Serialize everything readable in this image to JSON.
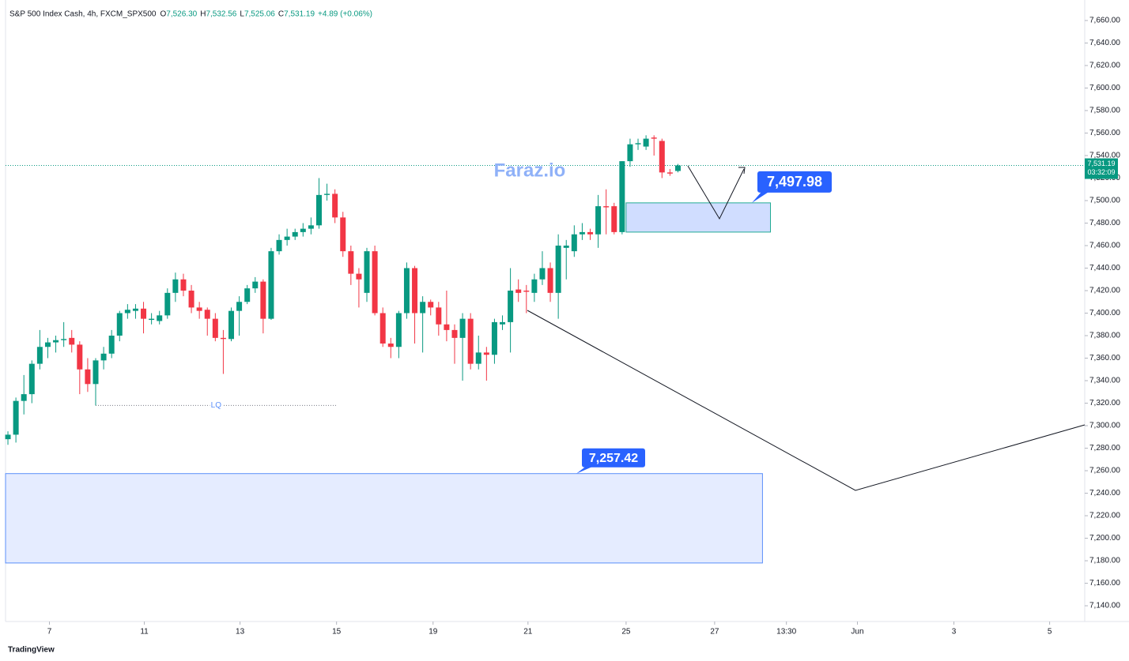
{
  "chart_data": {
    "type": "candlestick",
    "header": {
      "symbol": "S&P 500 Index Cash, 4h, FXCM_SPX500",
      "ohlc": [
        {
          "key": "O",
          "text": "7,526.30"
        },
        {
          "key": "H",
          "text": "7,532.56"
        },
        {
          "key": "L",
          "text": "7,525.06"
        },
        {
          "key": "C",
          "text": "7,531.19"
        }
      ],
      "change": "+4.89 (+0.06%)"
    },
    "watermark": "Faraz.io",
    "colors": {
      "up": "#089981",
      "down": "#f23645",
      "zone": "#2962ff"
    },
    "open": [
      7288,
      7292,
      7322,
      7328,
      7355,
      7370,
      7374,
      7376,
      7378,
      7372,
      7350,
      7337,
      7358,
      7364,
      7380,
      7400,
      7402,
      7404,
      7394,
      7393,
      7398,
      7418,
      7430,
      7420,
      7405,
      7403,
      7395,
      7378,
      7377,
      7402,
      7410,
      7422,
      7428,
      7395,
      7455,
      7465,
      7468,
      7472,
      7475,
      7478,
      7505,
      7506,
      7485,
      7455,
      7435,
      7418,
      7455,
      7400,
      7373,
      7370,
      7400,
      7440,
      7400,
      7410,
      7405,
      7390,
      7385,
      7378,
      7395,
      7355,
      7365,
      7363,
      7390,
      7392,
      7421,
      7420,
      7418,
      7430,
      7440,
      7418,
      7458,
      7455,
      7470,
      7472,
      7470,
      7495,
      7495,
      7472,
      7535,
      7550,
      7548,
      7556,
      7553,
      7525,
      7526.3
    ],
    "high": [
      7295,
      7325,
      7345,
      7358,
      7385,
      7378,
      7380,
      7392,
      7385,
      7375,
      7360,
      7360,
      7370,
      7385,
      7402,
      7408,
      7408,
      7410,
      7400,
      7402,
      7422,
      7436,
      7435,
      7425,
      7410,
      7405,
      7400,
      7385,
      7405,
      7415,
      7425,
      7432,
      7430,
      7458,
      7470,
      7475,
      7475,
      7480,
      7485,
      7520,
      7515,
      7510,
      7490,
      7460,
      7440,
      7458,
      7460,
      7405,
      7378,
      7402,
      7445,
      7442,
      7415,
      7412,
      7410,
      7420,
      7390,
      7400,
      7400,
      7380,
      7370,
      7395,
      7398,
      7440,
      7430,
      7425,
      7435,
      7455,
      7445,
      7470,
      7465,
      7478,
      7480,
      7475,
      7505,
      7510,
      7498,
      7535,
      7555,
      7555,
      7558,
      7558,
      7555,
      7528,
      7532.56
    ],
    "low": [
      7283,
      7285,
      7310,
      7320,
      7350,
      7360,
      7365,
      7370,
      7365,
      7328,
      7330,
      7318,
      7350,
      7360,
      7375,
      7395,
      7395,
      7382,
      7390,
      7390,
      7395,
      7410,
      7415,
      7400,
      7395,
      7380,
      7375,
      7346,
      7375,
      7380,
      7408,
      7418,
      7382,
      7394,
      7452,
      7460,
      7465,
      7468,
      7470,
      7475,
      7500,
      7480,
      7450,
      7425,
      7405,
      7410,
      7398,
      7370,
      7360,
      7360,
      7395,
      7373,
      7365,
      7398,
      7380,
      7375,
      7355,
      7340,
      7350,
      7350,
      7340,
      7355,
      7385,
      7365,
      7410,
      7400,
      7410,
      7425,
      7410,
      7395,
      7430,
      7450,
      7465,
      7465,
      7458,
      7470,
      7470,
      7470,
      7530,
      7545,
      7545,
      7540,
      7520,
      7522,
      7525.06
    ],
    "close": [
      7292,
      7322,
      7328,
      7355,
      7370,
      7374,
      7376,
      7377,
      7372,
      7350,
      7337,
      7358,
      7364,
      7380,
      7400,
      7403,
      7404,
      7395,
      7395,
      7398,
      7418,
      7430,
      7420,
      7405,
      7402,
      7395,
      7378,
      7377,
      7402,
      7410,
      7422,
      7428,
      7395,
      7455,
      7465,
      7468,
      7472,
      7475,
      7478,
      7505,
      7506,
      7485,
      7455,
      7435,
      7430,
      7455,
      7400,
      7373,
      7370,
      7400,
      7440,
      7400,
      7410,
      7405,
      7390,
      7385,
      7378,
      7395,
      7355,
      7365,
      7363,
      7392,
      7392,
      7420,
      7418,
      7419,
      7430,
      7440,
      7418,
      7460,
      7460,
      7470,
      7472,
      7470,
      7495,
      7494,
      7472,
      7535,
      7550,
      7551,
      7555,
      7555,
      7525,
      7524,
      7531.19
    ],
    "xlim": [
      -0.3,
      135
    ],
    "xticks": [
      {
        "value": 5.2,
        "label": "7"
      },
      {
        "value": 17.1,
        "label": "11"
      },
      {
        "value": 29.1,
        "label": "13"
      },
      {
        "value": 41.2,
        "label": "15"
      },
      {
        "value": 53.3,
        "label": "19"
      },
      {
        "value": 65.2,
        "label": "21"
      },
      {
        "value": 77.5,
        "label": "25"
      },
      {
        "value": 88.6,
        "label": "27"
      },
      {
        "value": 97.6,
        "label": "13:30"
      },
      {
        "value": 106.5,
        "label": "Jun"
      },
      {
        "value": 118.6,
        "label": "3"
      },
      {
        "value": 130.6,
        "label": "5"
      }
    ],
    "ylim": [
      7126,
      7672.6
    ],
    "yticks": [
      {
        "value": 7140,
        "label": "7,140.00"
      },
      {
        "value": 7160,
        "label": "7,160.00"
      },
      {
        "value": 7180,
        "label": "7,180.00"
      },
      {
        "value": 7200,
        "label": "7,200.00"
      },
      {
        "value": 7220,
        "label": "7,220.00"
      },
      {
        "value": 7240,
        "label": "7,240.00"
      },
      {
        "value": 7260,
        "label": "7,260.00"
      },
      {
        "value": 7280,
        "label": "7,280.00"
      },
      {
        "value": 7300,
        "label": "7,300.00"
      },
      {
        "value": 7320,
        "label": "7,320.00"
      },
      {
        "value": 7340,
        "label": "7,340.00"
      },
      {
        "value": 7360,
        "label": "7,360.00"
      },
      {
        "value": 7380,
        "label": "7,380.00"
      },
      {
        "value": 7400,
        "label": "7,400.00"
      },
      {
        "value": 7420,
        "label": "7,420.00"
      },
      {
        "value": 7440,
        "label": "7,440.00"
      },
      {
        "value": 7460,
        "label": "7,460.00"
      },
      {
        "value": 7480,
        "label": "7,480.00"
      },
      {
        "value": 7500,
        "label": "7,500.00"
      },
      {
        "value": 7520,
        "label": "7,520.00"
      },
      {
        "value": 7540,
        "label": "7,540.00"
      },
      {
        "value": 7560,
        "label": "7,560.00"
      },
      {
        "value": 7580,
        "label": "7,580.00"
      },
      {
        "value": 7600,
        "label": "7,600.00"
      },
      {
        "value": 7620,
        "label": "7,620.00"
      },
      {
        "value": 7640,
        "label": "7,640.00"
      },
      {
        "value": 7660,
        "label": "7,660.00"
      }
    ],
    "grid": false,
    "last_price": {
      "value": 7531.19,
      "label": "7,531.19",
      "countdown": "03:32:09"
    },
    "liquidity": {
      "label": "LQ",
      "value": 7318,
      "x": [
        11,
        41.2
      ]
    },
    "zones": [
      {
        "label": "7,497.98",
        "top": 7497.98,
        "bottom": 7472,
        "x": [
          77.5,
          95.6
        ]
      },
      {
        "label": "7,257.42",
        "top": 7257.42,
        "bottom": 7178,
        "x": [
          -0.3,
          94.6
        ]
      }
    ],
    "brand": "TradingView"
  }
}
